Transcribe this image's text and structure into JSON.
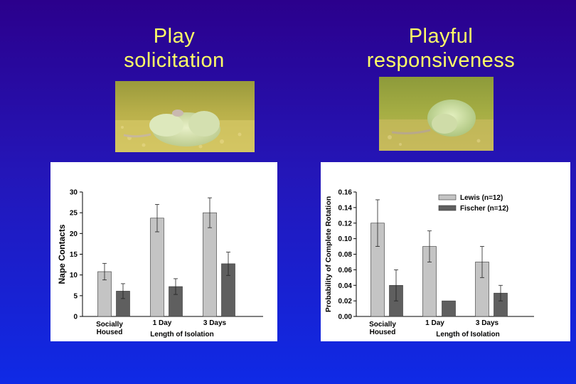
{
  "titles": {
    "left": [
      "Play",
      "solicitation"
    ],
    "right": [
      "Playful",
      "responsiveness"
    ]
  },
  "photos": {
    "left": "rat-play-solicitation-photo",
    "right": "rat-playful-responsiveness-photo"
  },
  "colors": {
    "light_bar": "#c4c4c4",
    "dark_bar": "#5f5f5f",
    "title": "#ffff66"
  },
  "chart_data": [
    {
      "type": "bar",
      "categories": [
        [
          "Socially",
          "Housed"
        ],
        [
          "1 Day"
        ],
        [
          "3 Days"
        ]
      ],
      "series": [
        {
          "values": [
            10.8,
            23.7,
            25.0
          ],
          "errors": [
            2.0,
            3.3,
            3.6
          ]
        },
        {
          "values": [
            6.1,
            7.2,
            12.7
          ],
          "errors": [
            1.8,
            1.9,
            2.8
          ]
        }
      ],
      "ylabel": "Nape Contacts",
      "xlabel": "Length of Isolation",
      "ylim": [
        0,
        30
      ],
      "yticks": [
        "0",
        "5",
        "10",
        "15",
        "20",
        "25",
        "30"
      ],
      "legend": null
    },
    {
      "type": "bar",
      "categories": [
        [
          "Socially",
          "Housed"
        ],
        [
          "1 Day"
        ],
        [
          "3 Days"
        ]
      ],
      "series": [
        {
          "name": "Lewis (n=12)",
          "values": [
            0.12,
            0.09,
            0.07
          ],
          "errors": [
            0.03,
            0.02,
            0.02
          ]
        },
        {
          "name": "Fischer (n=12)",
          "values": [
            0.04,
            0.02,
            0.03
          ],
          "errors": [
            0.02,
            0.0,
            0.01
          ]
        }
      ],
      "ylabel": "Probability of Complete Rotation",
      "xlabel": "Length of Isolation",
      "ylim": [
        0,
        0.16
      ],
      "yticks": [
        "0.00",
        "0.02",
        "0.04",
        "0.06",
        "0.08",
        "0.10",
        "0.12",
        "0.14",
        "0.16"
      ],
      "legend": "top-right"
    }
  ]
}
